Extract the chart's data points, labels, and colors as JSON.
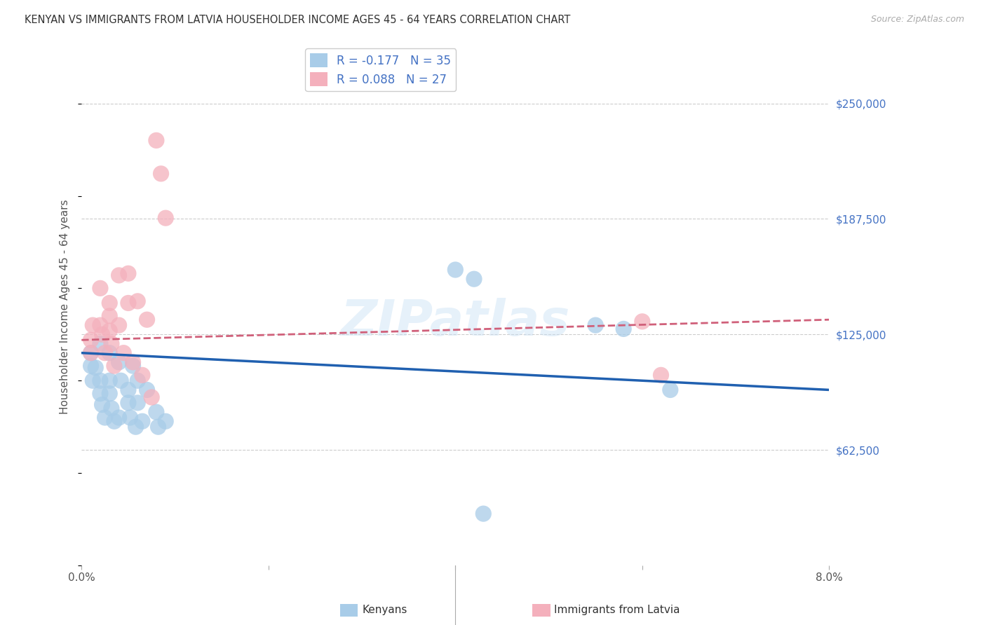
{
  "title": "KENYAN VS IMMIGRANTS FROM LATVIA HOUSEHOLDER INCOME AGES 45 - 64 YEARS CORRELATION CHART",
  "source": "Source: ZipAtlas.com",
  "ylabel": "Householder Income Ages 45 - 64 years",
  "xmin": 0.0,
  "xmax": 0.08,
  "ymin": 0,
  "ymax": 280000,
  "yticks": [
    62500,
    125000,
    187500,
    250000
  ],
  "ytick_labels": [
    "$62,500",
    "$125,000",
    "$187,500",
    "$250,000"
  ],
  "xticks": [
    0.0,
    0.02,
    0.04,
    0.06,
    0.08
  ],
  "xtick_labels": [
    "0.0%",
    "",
    "",
    "",
    "8.0%"
  ],
  "kenyan_R": -0.177,
  "kenyan_N": 35,
  "latvia_R": 0.088,
  "latvia_N": 27,
  "kenyan_color": "#a8cce8",
  "latvia_color": "#f4b0bc",
  "kenyan_line_color": "#2060b0",
  "latvia_line_color": "#d0607a",
  "background_color": "#ffffff",
  "grid_color": "#cccccc",
  "watermark": "ZIPatlas",
  "kenyan_points_x": [
    0.001,
    0.001,
    0.0012,
    0.0015,
    0.002,
    0.002,
    0.002,
    0.0022,
    0.0025,
    0.003,
    0.003,
    0.003,
    0.0032,
    0.0035,
    0.004,
    0.004,
    0.0042,
    0.005,
    0.005,
    0.0052,
    0.0055,
    0.0058,
    0.006,
    0.006,
    0.0065,
    0.007,
    0.008,
    0.0082,
    0.009,
    0.04,
    0.042,
    0.055,
    0.058,
    0.063,
    0.043
  ],
  "kenyan_points_y": [
    108000,
    115000,
    100000,
    107000,
    120000,
    100000,
    93000,
    87000,
    80000,
    115000,
    100000,
    93000,
    85000,
    78000,
    110000,
    80000,
    100000,
    95000,
    88000,
    80000,
    108000,
    75000,
    100000,
    88000,
    78000,
    95000,
    83000,
    75000,
    78000,
    160000,
    155000,
    130000,
    128000,
    95000,
    28000
  ],
  "latvia_points_x": [
    0.001,
    0.001,
    0.0012,
    0.002,
    0.002,
    0.0022,
    0.0025,
    0.003,
    0.003,
    0.003,
    0.0032,
    0.0035,
    0.004,
    0.004,
    0.0045,
    0.005,
    0.005,
    0.0055,
    0.006,
    0.0065,
    0.007,
    0.0075,
    0.008,
    0.0085,
    0.009,
    0.06,
    0.062
  ],
  "latvia_points_y": [
    122000,
    115000,
    130000,
    150000,
    130000,
    125000,
    115000,
    142000,
    135000,
    127000,
    120000,
    108000,
    157000,
    130000,
    115000,
    158000,
    142000,
    110000,
    143000,
    103000,
    133000,
    91000,
    230000,
    212000,
    188000,
    132000,
    103000
  ]
}
